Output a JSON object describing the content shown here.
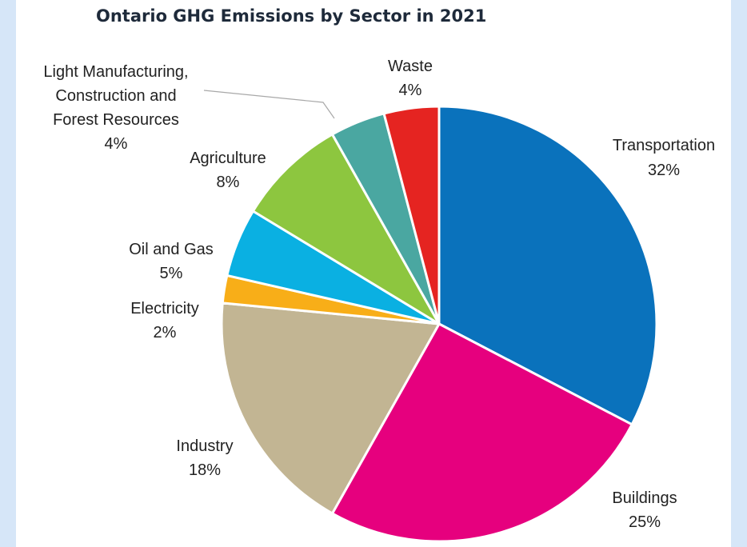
{
  "chart_data": {
    "type": "pie",
    "title": "Ontario GHG Emissions by Sector in 2021",
    "slices": [
      {
        "name": "Transportation",
        "label_lines": [
          "Transportation",
          "32%"
        ],
        "value": 32,
        "color": "#0a72bc"
      },
      {
        "name": "Buildings",
        "label_lines": [
          "Buildings",
          "25%"
        ],
        "value": 25,
        "color": "#e6007e"
      },
      {
        "name": "Industry",
        "label_lines": [
          "Industry",
          "18%"
        ],
        "value": 18,
        "color": "#c2b593"
      },
      {
        "name": "Electricity",
        "label_lines": [
          "Electricity",
          "2%"
        ],
        "value": 2,
        "color": "#f8ae18"
      },
      {
        "name": "Oil and Gas",
        "label_lines": [
          "Oil and Gas",
          "5%"
        ],
        "value": 5,
        "color": "#0ab0e2"
      },
      {
        "name": "Agriculture",
        "label_lines": [
          "Agriculture",
          "8%"
        ],
        "value": 8,
        "color": "#8dc63f"
      },
      {
        "name": "Light Manufacturing, Construction and Forest Resources",
        "label_lines": [
          "Light Manufacturing,",
          "Construction and",
          "Forest Resources",
          "4%"
        ],
        "value": 4,
        "color": "#4aa7a1"
      },
      {
        "name": "Waste",
        "label_lines": [
          "Waste",
          "4%"
        ],
        "value": 4,
        "color": "#e52421"
      }
    ],
    "legend": "none"
  }
}
